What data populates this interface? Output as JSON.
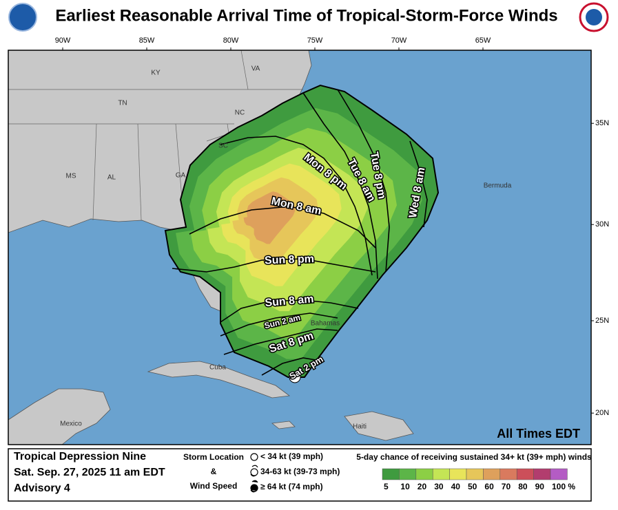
{
  "header": {
    "title": "Earliest Reasonable Arrival Time of Tropical-Storm-Force Winds"
  },
  "map": {
    "longitude_labels": [
      {
        "lon": -90,
        "label": "90W"
      },
      {
        "lon": -85,
        "label": "85W"
      },
      {
        "lon": -80,
        "label": "80W"
      },
      {
        "lon": -75,
        "label": "75W"
      },
      {
        "lon": -70,
        "label": "70W"
      },
      {
        "lon": -65,
        "label": "65W"
      }
    ],
    "latitude_labels": [
      {
        "lat": 35,
        "label": "35N"
      },
      {
        "lat": 30,
        "label": "30N"
      },
      {
        "lat": 25,
        "label": "25N"
      },
      {
        "lat": 20,
        "label": "20N"
      }
    ],
    "places": [
      "KY",
      "VA",
      "TN",
      "NC",
      "SC",
      "GA",
      "MS",
      "AL",
      "Bermuda",
      "Bahamas",
      "Cuba",
      "Mexico",
      "Haiti"
    ],
    "arrival_times": [
      "Mon 8 pm",
      "Tue 8 am",
      "Tue 8 pm",
      "Wed 8 am",
      "Mon 8 am",
      "Sun 8 pm",
      "Sun 8 am",
      "Sun 2 am",
      "Sat 8 pm",
      "Sat 2 pm"
    ],
    "note": "All Times EDT"
  },
  "legend": {
    "storm": {
      "name": "Tropical Depression Nine",
      "date": "Sat. Sep. 27, 2025  11 am EDT",
      "advisory": "Advisory 4"
    },
    "symbols_title": [
      "Storm Location",
      "&",
      "Wind Speed"
    ],
    "symbols": [
      "< 34 kt (39 mph)",
      "34-63 kt (39-73 mph)",
      "≥ 64 kt (74 mph)"
    ],
    "scale_title": "5-day chance of receiving sustained 34+ kt (39+ mph) winds",
    "scale": [
      {
        "label": "5",
        "color": "#3f9b3f"
      },
      {
        "label": "10",
        "color": "#5cb548"
      },
      {
        "label": "20",
        "color": "#8ccf45"
      },
      {
        "label": "30",
        "color": "#c4e555"
      },
      {
        "label": "40",
        "color": "#e8e45a"
      },
      {
        "label": "50",
        "color": "#e6c65a"
      },
      {
        "label": "60",
        "color": "#dea05c"
      },
      {
        "label": "70",
        "color": "#d97a5e"
      },
      {
        "label": "80",
        "color": "#cc4f5a"
      },
      {
        "label": "90",
        "color": "#b23d6e"
      },
      {
        "label": "100 %",
        "color": "#b45cc4"
      }
    ]
  }
}
